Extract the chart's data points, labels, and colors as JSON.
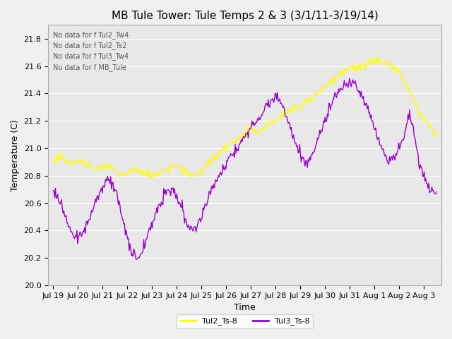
{
  "title": "MB Tule Tower: Tule Temps 2 & 3 (3/1/11-3/19/14)",
  "xlabel": "Time",
  "ylabel": "Temperature (C)",
  "ylim": [
    20.0,
    21.9
  ],
  "yticks": [
    20.0,
    20.2,
    20.4,
    20.6,
    20.8,
    21.0,
    21.2,
    21.4,
    21.6,
    21.8
  ],
  "xlim": [
    0,
    15.5
  ],
  "xtick_labels": [
    "Jul 19",
    "Jul 20",
    "Jul 21",
    "Jul 22",
    "Jul 23",
    "Jul 24",
    "Jul 25",
    "Jul 26",
    "Jul 27",
    "Jul 28",
    "Jul 29",
    "Jul 30",
    "Jul 31",
    "Aug 1",
    "Aug 2",
    "Aug 3"
  ],
  "line1_color": "#ffff00",
  "line2_color": "#9900cc",
  "legend_labels": [
    "Tul2_Ts-8",
    "Tul3_Ts-8"
  ],
  "no_data_text": [
    "No data for f Tul2_Tw4",
    "No data for f Tul2_Ts2",
    "No data for f Tul3_Tw4",
    "No data for f MB_Tule"
  ],
  "background_color": "#f0f0f0",
  "plot_bg_color": "#e8e8e8",
  "grid_color": "#ffffff",
  "title_fontsize": 11,
  "axis_fontsize": 9,
  "tick_fontsize": 8
}
